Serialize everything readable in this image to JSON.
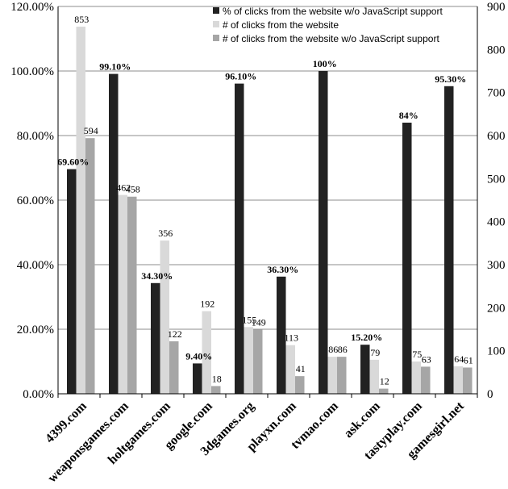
{
  "chart_data": {
    "type": "bar",
    "categories": [
      "4399.com",
      "weaponsgames.com",
      "holtgames.com",
      "google.com",
      "3dgames.org",
      "playxn.com",
      "tvmao.com",
      "ask.com",
      "tastyplay.com",
      "gamesgirl.net"
    ],
    "series": [
      {
        "name": "% of clicks from the website w/o JavaScript support",
        "axis": "left",
        "color": "#222222",
        "values": [
          69.6,
          99.1,
          34.3,
          9.4,
          96.1,
          36.3,
          100,
          15.2,
          84,
          95.3
        ],
        "labels": [
          "69.60%",
          "99.10%",
          "34.30%",
          "9.40%",
          "96.10%",
          "36.30%",
          "100%",
          "15.20%",
          "84%",
          "95.30%"
        ]
      },
      {
        "name": "# of clicks from the website",
        "axis": "right",
        "color": "#d9d9d9",
        "values": [
          853,
          462,
          356,
          192,
          155,
          113,
          86,
          79,
          75,
          64
        ],
        "labels": [
          "853",
          "462",
          "356",
          "192",
          "155",
          "113",
          "86",
          "79",
          "75",
          "64"
        ]
      },
      {
        "name": "# of clicks from the website w/o JavaScript support",
        "axis": "right",
        "color": "#a6a6a6",
        "values": [
          594,
          458,
          122,
          18,
          149,
          41,
          86,
          12,
          63,
          61
        ],
        "labels": [
          "594",
          "458",
          "122",
          "18",
          "149",
          "41",
          "86",
          "12",
          "63",
          "61"
        ]
      }
    ],
    "y_left": {
      "ticks": [
        "0.00%",
        "20.00%",
        "40.00%",
        "60.00%",
        "80.00%",
        "100.00%",
        "120.00%"
      ],
      "lim": [
        0,
        120
      ]
    },
    "y_right": {
      "ticks": [
        "0",
        "100",
        "200",
        "300",
        "400",
        "500",
        "600",
        "700",
        "800",
        "900"
      ],
      "lim": [
        0,
        900
      ]
    },
    "grid": true,
    "legend": "top-right"
  }
}
